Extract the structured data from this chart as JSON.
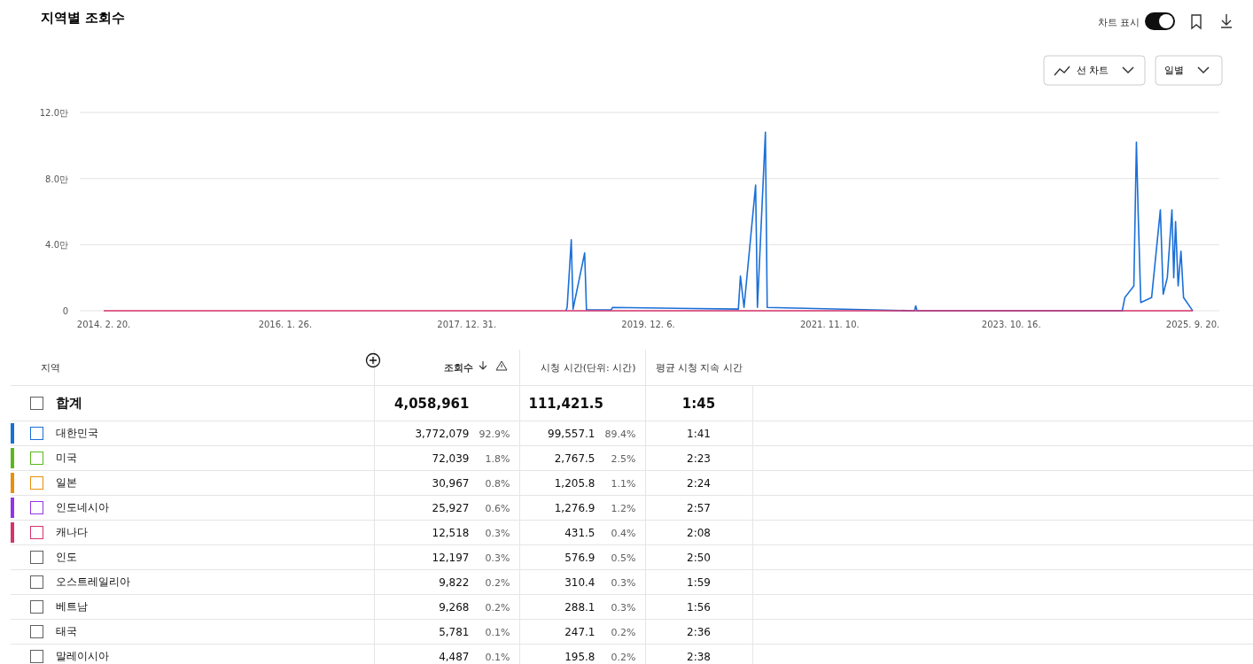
{
  "chart_data": [
    {
      "type": "line",
      "title": "지역별 조회수",
      "annotations": [
        "차트 표시",
        "선 차트",
        "일별"
      ],
      "xlim": [
        "2013-11-19",
        "2026-01-01"
      ],
      "xticks": [
        {
          "value": "2014-02-20",
          "label": "2014. 2. 20."
        },
        {
          "value": "2016-01-26",
          "label": "2016. 1. 26."
        },
        {
          "value": "2017-12-31",
          "label": "2017. 12. 31."
        },
        {
          "value": "2019-12-06",
          "label": "2019. 12. 6."
        },
        {
          "value": "2021-11-10",
          "label": "2021. 11. 10."
        },
        {
          "value": "2023-10-16",
          "label": "2023. 10. 16."
        },
        {
          "value": "2025-09-20",
          "label": "2025. 9. 20."
        }
      ],
      "ylim": [
        0,
        12
      ],
      "yticks": [
        0,
        {
          "value": 4,
          "label": "4.0만"
        },
        {
          "value": 8,
          "label": "8.0만"
        },
        {
          "value": 12,
          "label": "12.0만"
        }
      ],
      "grid": "y",
      "marker": "none",
      "series": [
        {
          "color": "#1a6fd8",
          "x": [
            "2019-01-20",
            "2019-01-25",
            "2019-02-10",
            "2019-02-17",
            "2019-04-03",
            "2019-04-10",
            "2019-07-15",
            "2019-07-20",
            "2020-11-20",
            "2020-11-28",
            "2020-12-12",
            "2021-01-26",
            "2021-02-02",
            "2021-03-05",
            "2021-03-12",
            "2022-10-05",
            "2022-10-10",
            "2022-10-15",
            "2024-12-20",
            "2024-12-30",
            "2025-02-03",
            "2025-02-13",
            "2025-02-20",
            "2025-03-02",
            "2025-04-13",
            "2025-05-17",
            "2025-05-28",
            "2025-06-13",
            "2025-07-01",
            "2025-07-08",
            "2025-07-15",
            "2025-07-25",
            "2025-08-05",
            "2025-08-15",
            "2025-09-15",
            "2025-09-20"
          ],
          "values": [
            0,
            0.2,
            4.3,
            0.1,
            3.5,
            0.05,
            0.05,
            0.2,
            0.1,
            2.1,
            0.2,
            7.6,
            0.2,
            10.8,
            0.2,
            0,
            0.3,
            0,
            0,
            0.8,
            1.5,
            10.2,
            5.8,
            0.5,
            0.8,
            6.1,
            1.0,
            2.0,
            6.1,
            2.0,
            5.4,
            1.5,
            3.6,
            0.8,
            0.1,
            0
          ]
        },
        {
          "color": "#d6336c",
          "x": [
            "2014-02-20",
            "2025-09-20"
          ],
          "values": [
            0,
            0
          ]
        }
      ]
    },
    {
      "type": "other",
      "xlabel": "지역",
      "colors": [
        null,
        "#1a6fd8",
        "#5bb81b",
        "#e8900c",
        "#9334e6",
        "#d6336c",
        null,
        null,
        null,
        null,
        null
      ],
      "categories": [
        "합계",
        "대한민국",
        "미국",
        "일본",
        "인도네시아",
        "캐나다",
        "인도",
        "오스트레일리아",
        "베트남",
        "태국",
        "말레이시아"
      ],
      "series": [
        {
          "name": "조회수",
          "values": [
            4058961,
            3772079,
            72039,
            30967,
            25927,
            12518,
            12197,
            9822,
            9268,
            5781,
            4487
          ],
          "value_labels": [
            "4,058,961",
            "3,772,079",
            "72,039",
            "30,967",
            "25,927",
            "12,518",
            "12,197",
            "9,822",
            "9,268",
            "5,781",
            "4,487"
          ]
        },
        {
          "values": [
            null,
            92.9,
            1.8,
            0.8,
            0.6,
            0.3,
            0.3,
            0.2,
            0.2,
            0.1,
            0.1
          ],
          "value_labels": [
            null,
            "92.9%",
            "1.8%",
            "0.8%",
            "0.6%",
            "0.3%",
            "0.3%",
            "0.2%",
            "0.2%",
            "0.1%",
            "0.1%"
          ]
        },
        {
          "name": "시청 시간(단위: 시간)",
          "values": [
            111421.5,
            99557.1,
            2767.5,
            1205.8,
            1276.9,
            431.5,
            576.9,
            310.4,
            288.1,
            247.1,
            195.8
          ],
          "value_labels": [
            "111,421.5",
            "99,557.1",
            "2,767.5",
            "1,205.8",
            "1,276.9",
            "431.5",
            "576.9",
            "310.4",
            "288.1",
            "247.1",
            "195.8"
          ]
        },
        {
          "values": [
            null,
            89.4,
            2.5,
            1.1,
            1.2,
            0.4,
            0.5,
            0.3,
            0.3,
            0.2,
            0.2
          ],
          "value_labels": [
            null,
            "89.4%",
            "2.5%",
            "1.1%",
            "1.2%",
            "0.4%",
            "0.5%",
            "0.3%",
            "0.3%",
            "0.2%",
            "0.2%"
          ]
        },
        {
          "name": "평균 시청 지속 시간",
          "values": [
            null,
            null,
            null,
            null,
            null,
            null,
            null,
            null,
            null,
            null,
            null
          ],
          "value_labels": [
            "1:45",
            "1:41",
            "2:23",
            "2:24",
            "2:57",
            "2:08",
            "2:50",
            "1:59",
            "1:56",
            "2:36",
            "2:38"
          ]
        }
      ]
    }
  ]
}
